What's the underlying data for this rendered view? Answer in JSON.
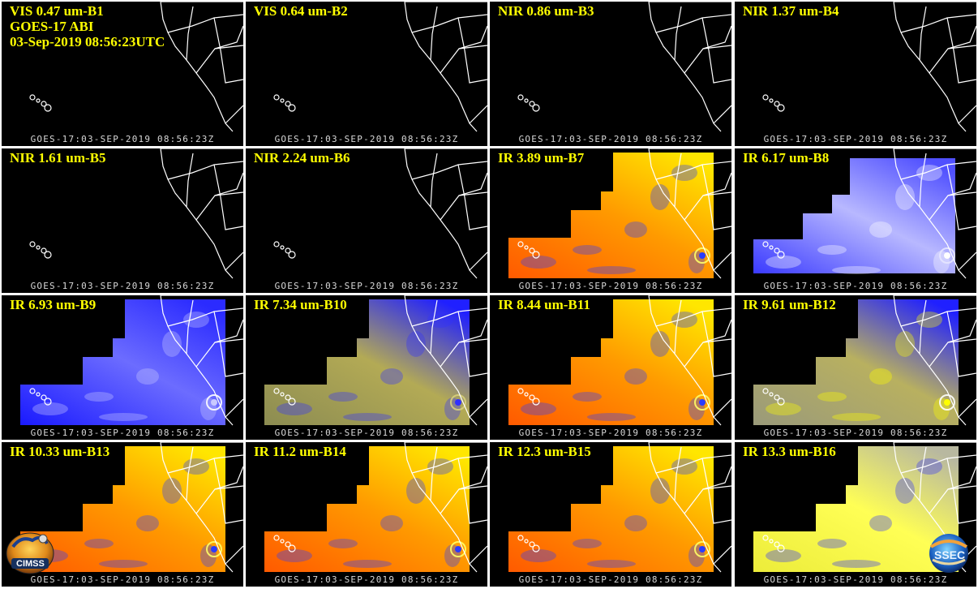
{
  "header": {
    "line1": "GOES-17 ABI",
    "line2": "03-Sep-2019 08:56:23UTC"
  },
  "timestamp": "GOES-17:03-SEP-2019 08:56:23Z",
  "panels": [
    {
      "label": "VIS 0.47 um-B1",
      "scheme": "dark"
    },
    {
      "label": "VIS 0.64 um-B2",
      "scheme": "dark"
    },
    {
      "label": "NIR 0.86 um-B3",
      "scheme": "dark"
    },
    {
      "label": "NIR 1.37 um-B4",
      "scheme": "dark"
    },
    {
      "label": "NIR 1.61 um-B5",
      "scheme": "dark"
    },
    {
      "label": "NIR 2.24 um-B6",
      "scheme": "dark"
    },
    {
      "label": "IR 3.89 um-B7",
      "scheme": "warm"
    },
    {
      "label": "IR 6.17 um-B8",
      "scheme": "wv-light"
    },
    {
      "label": "IR 6.93 um-B9",
      "scheme": "wv-blue"
    },
    {
      "label": "IR 7.34 um-B10",
      "scheme": "wv-olive"
    },
    {
      "label": "IR 8.44 um-B11",
      "scheme": "warm"
    },
    {
      "label": "IR 9.61 um-B12",
      "scheme": "gray-yellow"
    },
    {
      "label": "IR 10.33 um-B13",
      "scheme": "warm"
    },
    {
      "label": "IR 11.2 um-B14",
      "scheme": "warm"
    },
    {
      "label": "IR 12.3 um-B15",
      "scheme": "warm"
    },
    {
      "label": "IR 13.3 um-B16",
      "scheme": "yellow"
    }
  ],
  "logos": {
    "left": "CIMSS",
    "right": "SSEC"
  },
  "colors": {
    "label": "#ffff00",
    "timestamp": "#d8d8d8",
    "background": "#000000",
    "divider": "#ffffff"
  }
}
